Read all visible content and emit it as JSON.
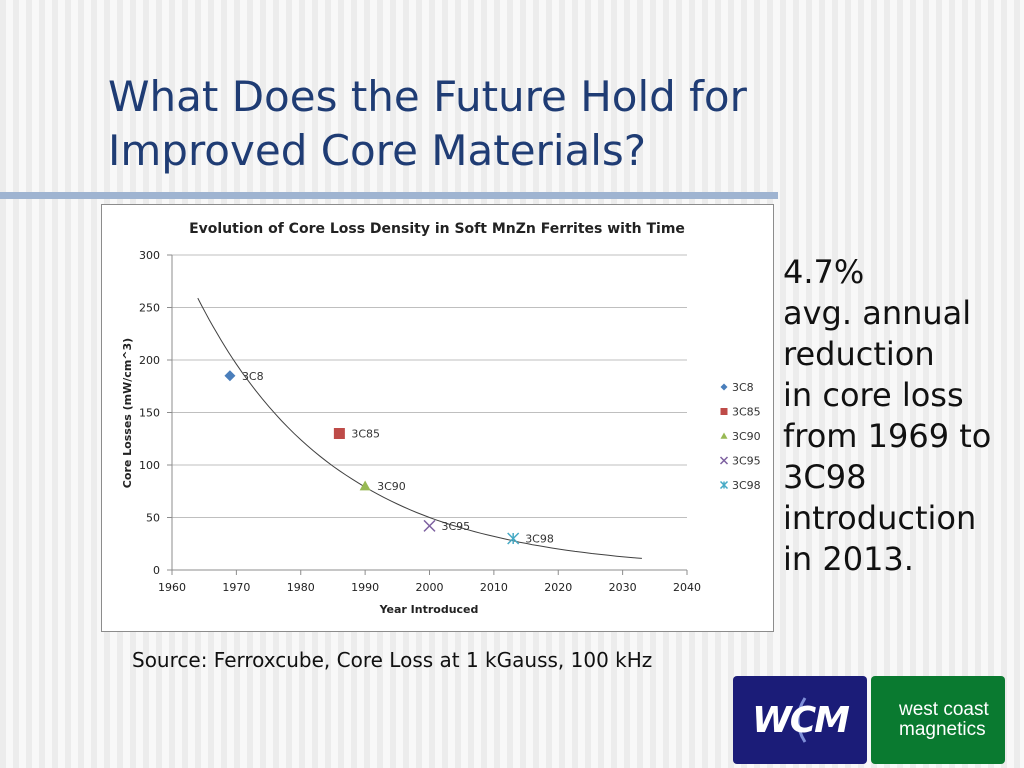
{
  "slide": {
    "title_line1": "What Does the Future Hold for",
    "title_line2": "Improved Core Materials?",
    "side_note": [
      "4.7%",
      "avg. annual",
      "reduction",
      "in core loss",
      "from 1969 to",
      "3C98",
      "introduction",
      "in 2013."
    ],
    "source": "Source: Ferroxcube, Core Loss at 1 kGauss, 100 kHz"
  },
  "logos": {
    "wcm": "WCM",
    "west_coast": [
      "west coast",
      "magnetics"
    ]
  },
  "colors": {
    "title": "#1f3c74",
    "wcm_logo_bg": "#1b1c78",
    "west_logo_bg": "#0a7a30",
    "series_3C8": "#4a7ebb",
    "series_3C85": "#be4b48",
    "series_3C90": "#98b954",
    "series_3C95": "#7d60a0",
    "series_3C98": "#46aac5"
  },
  "chart_data": {
    "type": "scatter",
    "title": "Evolution of Core Loss Density in Soft MnZn Ferrites with Time",
    "xlabel": "Year Introduced",
    "ylabel": "Core Losses (mW/cm^3)",
    "xlim": [
      1960,
      2040
    ],
    "ylim": [
      0,
      300
    ],
    "x_ticks": [
      1960,
      1970,
      1980,
      1990,
      2000,
      2010,
      2020,
      2030,
      2040
    ],
    "y_ticks": [
      0,
      50,
      100,
      150,
      200,
      250,
      300
    ],
    "grid": "horizontal",
    "legend": "right",
    "series": [
      {
        "name": "3C8",
        "marker": "diamond",
        "color": "#4a7ebb",
        "points": [
          {
            "x": 1969,
            "y": 185,
            "label": "3C8"
          }
        ]
      },
      {
        "name": "3C85",
        "marker": "square",
        "color": "#be4b48",
        "points": [
          {
            "x": 1986,
            "y": 130,
            "label": "3C85"
          }
        ]
      },
      {
        "name": "3C90",
        "marker": "triangle",
        "color": "#98b954",
        "points": [
          {
            "x": 1990,
            "y": 80,
            "label": "3C90"
          }
        ]
      },
      {
        "name": "3C95",
        "marker": "x",
        "color": "#7d60a0",
        "points": [
          {
            "x": 2000,
            "y": 42,
            "label": "3C95"
          }
        ]
      },
      {
        "name": "3C98",
        "marker": "star",
        "color": "#46aac5",
        "points": [
          {
            "x": 2013,
            "y": 30,
            "label": "3C98"
          }
        ]
      }
    ],
    "trendline": {
      "type": "exponential",
      "color": "#404040",
      "points": [
        [
          1964,
          259
        ],
        [
          1970,
          196
        ],
        [
          1980,
          124
        ],
        [
          1990,
          79
        ],
        [
          2000,
          50
        ],
        [
          2010,
          32
        ],
        [
          2020,
          20
        ],
        [
          2033,
          11
        ]
      ]
    }
  }
}
